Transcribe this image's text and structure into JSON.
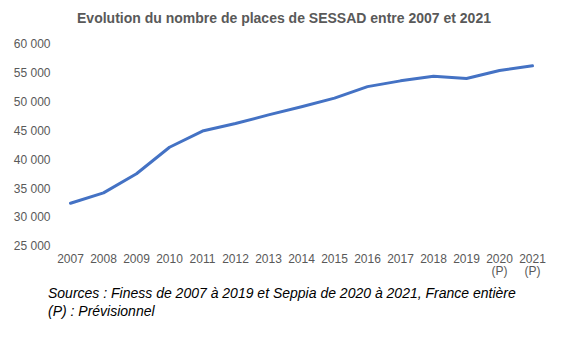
{
  "chart_data": {
    "type": "line",
    "title": "Evolution du nombre de places de SESSAD entre 2007 et 2021",
    "categories": [
      "2007",
      "2008",
      "2009",
      "2010",
      "2011",
      "2012",
      "2013",
      "2014",
      "2015",
      "2016",
      "2017",
      "2018",
      "2019",
      "2020\n(P)",
      "2021\n(P)"
    ],
    "values": [
      32500,
      34300,
      37600,
      42200,
      45000,
      46300,
      47800,
      49200,
      50700,
      52700,
      53700,
      54500,
      54100,
      55500,
      56300
    ],
    "color": "#4472c4",
    "ylim": [
      25000,
      60000
    ],
    "yticks": [
      {
        "value": 25000,
        "label": "25 000"
      },
      {
        "value": 30000,
        "label": "30 000"
      },
      {
        "value": 35000,
        "label": "35 000"
      },
      {
        "value": 40000,
        "label": "40 000"
      },
      {
        "value": 45000,
        "label": "45 000"
      },
      {
        "value": 50000,
        "label": "50 000"
      },
      {
        "value": 55000,
        "label": "55 000"
      },
      {
        "value": 60000,
        "label": "60 000"
      }
    ],
    "grid": false,
    "source": "Sources : Finess de 2007 à 2019 et Seppia de 2020 à 2021, France entière",
    "note": "(P) : Prévisionnel"
  }
}
